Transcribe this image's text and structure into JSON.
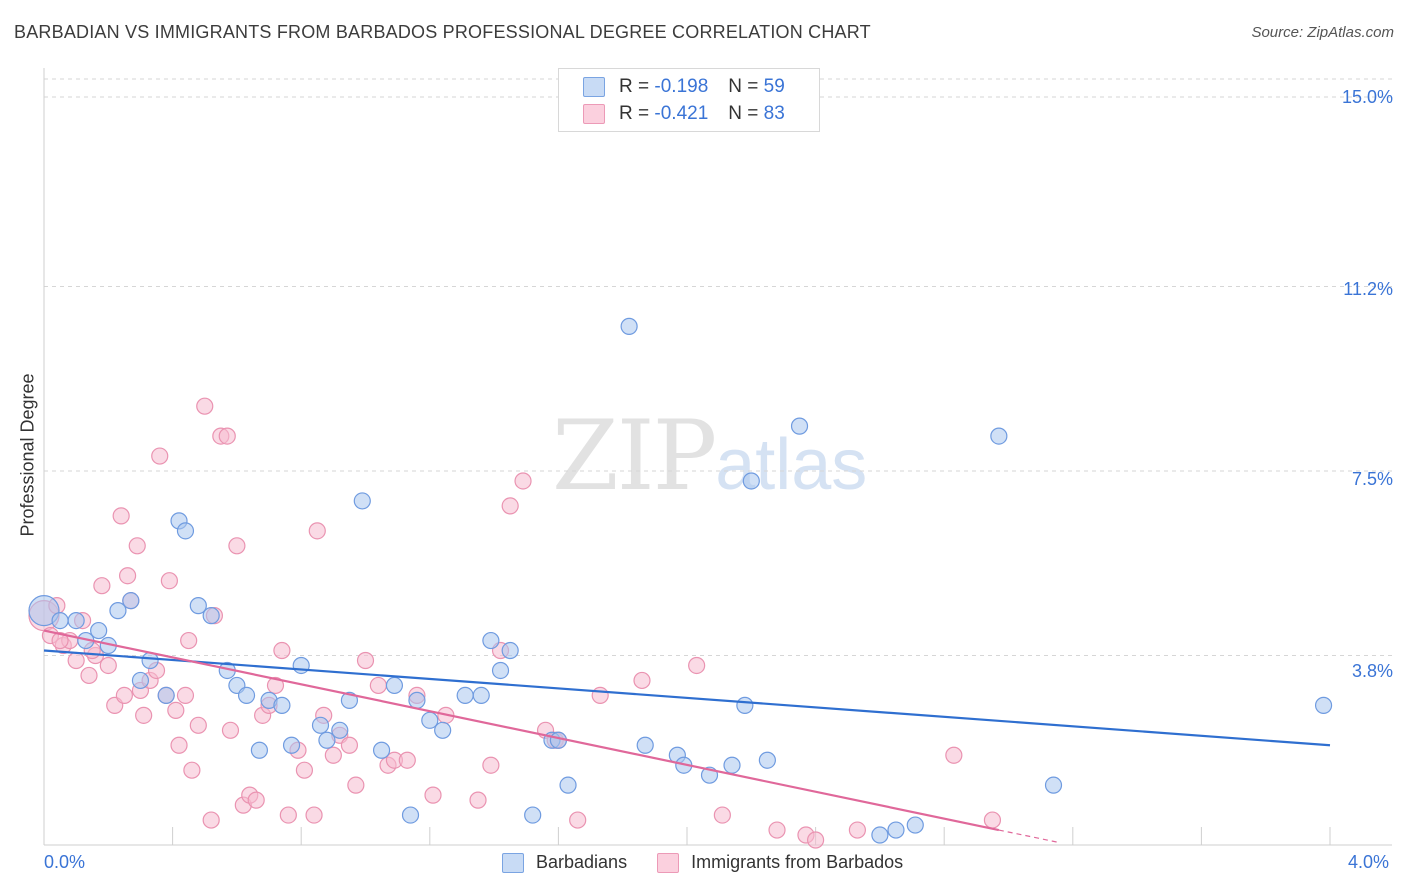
{
  "title": "BARBADIAN VS IMMIGRANTS FROM BARBADOS PROFESSIONAL DEGREE CORRELATION CHART",
  "source": "Source: ZipAtlas.com",
  "watermark": {
    "zip": "ZIP",
    "atlas": "atlas"
  },
  "legend_top": [
    {
      "r_label": "R =",
      "r_value": "-0.198",
      "n_label": "N =",
      "n_value": "59"
    },
    {
      "r_label": "R =",
      "r_value": "-0.421",
      "n_label": "N =",
      "n_value": "83"
    }
  ],
  "colors": {
    "blue_fill": "#a9c6ef",
    "blue_stroke": "#6f9be0",
    "blue_line": "#2f6fd0",
    "pink_fill": "#f6bcd0",
    "pink_stroke": "#ea93b1",
    "pink_line": "#e0689a",
    "grid": "#d6d6d6",
    "axis_text": "#3a74d6"
  },
  "chart_data": {
    "type": "scatter",
    "title": "BARBADIAN VS IMMIGRANTS FROM BARBADOS PROFESSIONAL DEGREE CORRELATION CHART",
    "xlabel": "",
    "ylabel": "Professional Degree",
    "xlim": [
      0.0,
      4.0
    ],
    "ylim": [
      0.0,
      15.0
    ],
    "x_tick_labels": [
      "0.0%",
      "4.0%"
    ],
    "y_ticks": [
      3.8,
      7.5,
      11.2,
      15.0
    ],
    "y_tick_labels": [
      "3.8%",
      "7.5%",
      "11.2%",
      "15.0%"
    ],
    "series": [
      {
        "name": "Barbadians",
        "color": "blue",
        "r": -0.198,
        "n": 59,
        "trend": {
          "x0": 0.0,
          "y0": 3.9,
          "x1": 4.0,
          "y1": 2.0
        },
        "points": [
          [
            0.0,
            4.7
          ],
          [
            0.05,
            4.5
          ],
          [
            0.1,
            4.5
          ],
          [
            0.13,
            4.1
          ],
          [
            0.17,
            4.3
          ],
          [
            0.2,
            4.0
          ],
          [
            0.23,
            4.7
          ],
          [
            0.27,
            4.9
          ],
          [
            0.3,
            3.3
          ],
          [
            0.33,
            3.7
          ],
          [
            0.38,
            3.0
          ],
          [
            0.42,
            6.5
          ],
          [
            0.44,
            6.3
          ],
          [
            0.48,
            4.8
          ],
          [
            0.52,
            4.6
          ],
          [
            0.57,
            3.5
          ],
          [
            0.6,
            3.2
          ],
          [
            0.63,
            3.0
          ],
          [
            0.67,
            1.9
          ],
          [
            0.7,
            2.9
          ],
          [
            0.74,
            2.8
          ],
          [
            0.77,
            2.0
          ],
          [
            0.8,
            3.6
          ],
          [
            0.86,
            2.4
          ],
          [
            0.88,
            2.1
          ],
          [
            0.92,
            2.3
          ],
          [
            0.95,
            2.9
          ],
          [
            0.99,
            6.9
          ],
          [
            1.05,
            1.9
          ],
          [
            1.09,
            3.2
          ],
          [
            1.14,
            0.6
          ],
          [
            1.16,
            2.9
          ],
          [
            1.2,
            2.5
          ],
          [
            1.24,
            2.3
          ],
          [
            1.31,
            3.0
          ],
          [
            1.36,
            3.0
          ],
          [
            1.39,
            4.1
          ],
          [
            1.42,
            3.5
          ],
          [
            1.45,
            3.9
          ],
          [
            1.52,
            0.6
          ],
          [
            1.58,
            2.1
          ],
          [
            1.6,
            2.1
          ],
          [
            1.63,
            1.2
          ],
          [
            1.82,
            10.4
          ],
          [
            1.87,
            2.0
          ],
          [
            1.97,
            1.8
          ],
          [
            1.99,
            1.6
          ],
          [
            2.07,
            1.4
          ],
          [
            2.14,
            1.6
          ],
          [
            2.18,
            2.8
          ],
          [
            2.2,
            7.3
          ],
          [
            2.25,
            1.7
          ],
          [
            2.35,
            8.4
          ],
          [
            2.6,
            0.2
          ],
          [
            2.65,
            0.3
          ],
          [
            2.71,
            0.4
          ],
          [
            2.97,
            8.2
          ],
          [
            3.14,
            1.2
          ],
          [
            3.98,
            2.8
          ]
        ]
      },
      {
        "name": "Immigrants from Barbados",
        "color": "pink",
        "r": -0.421,
        "n": 83,
        "trend": {
          "x0": 0.0,
          "y0": 4.3,
          "x1": 2.97,
          "y1": 0.3
        },
        "trend_dashed": {
          "x0": 2.97,
          "y0": 0.3,
          "x1": 3.15,
          "y1": 0.06
        },
        "points": [
          [
            0.0,
            4.6
          ],
          [
            0.02,
            4.2
          ],
          [
            0.04,
            4.8
          ],
          [
            0.06,
            4.0
          ],
          [
            0.08,
            4.1
          ],
          [
            0.1,
            3.7
          ],
          [
            0.12,
            4.5
          ],
          [
            0.14,
            3.4
          ],
          [
            0.16,
            3.8
          ],
          [
            0.18,
            5.2
          ],
          [
            0.2,
            3.6
          ],
          [
            0.22,
            2.8
          ],
          [
            0.24,
            6.6
          ],
          [
            0.26,
            5.4
          ],
          [
            0.27,
            4.9
          ],
          [
            0.29,
            6.0
          ],
          [
            0.3,
            3.1
          ],
          [
            0.31,
            2.6
          ],
          [
            0.33,
            3.3
          ],
          [
            0.35,
            3.5
          ],
          [
            0.36,
            7.8
          ],
          [
            0.38,
            3.0
          ],
          [
            0.39,
            5.3
          ],
          [
            0.41,
            2.7
          ],
          [
            0.42,
            2.0
          ],
          [
            0.44,
            3.0
          ],
          [
            0.46,
            1.5
          ],
          [
            0.48,
            2.4
          ],
          [
            0.5,
            8.8
          ],
          [
            0.52,
            0.5
          ],
          [
            0.53,
            4.6
          ],
          [
            0.55,
            8.2
          ],
          [
            0.57,
            8.2
          ],
          [
            0.58,
            2.3
          ],
          [
            0.6,
            6.0
          ],
          [
            0.62,
            0.8
          ],
          [
            0.64,
            1.0
          ],
          [
            0.66,
            0.9
          ],
          [
            0.68,
            2.6
          ],
          [
            0.7,
            2.8
          ],
          [
            0.72,
            3.2
          ],
          [
            0.74,
            3.9
          ],
          [
            0.76,
            0.6
          ],
          [
            0.79,
            1.9
          ],
          [
            0.81,
            1.5
          ],
          [
            0.84,
            0.6
          ],
          [
            0.85,
            6.3
          ],
          [
            0.87,
            2.6
          ],
          [
            0.9,
            1.8
          ],
          [
            0.92,
            2.2
          ],
          [
            0.95,
            2.0
          ],
          [
            0.97,
            1.2
          ],
          [
            1.0,
            3.7
          ],
          [
            1.04,
            3.2
          ],
          [
            1.07,
            1.6
          ],
          [
            1.09,
            1.7
          ],
          [
            1.13,
            1.7
          ],
          [
            1.16,
            3.0
          ],
          [
            1.21,
            1.0
          ],
          [
            1.25,
            2.6
          ],
          [
            1.35,
            0.9
          ],
          [
            1.39,
            1.6
          ],
          [
            1.42,
            3.9
          ],
          [
            1.45,
            6.8
          ],
          [
            1.49,
            7.3
          ],
          [
            1.56,
            2.3
          ],
          [
            1.59,
            2.1
          ],
          [
            1.6,
            2.1
          ],
          [
            1.66,
            0.5
          ],
          [
            1.73,
            3.0
          ],
          [
            1.86,
            3.3
          ],
          [
            2.03,
            3.6
          ],
          [
            2.11,
            0.6
          ],
          [
            2.28,
            0.3
          ],
          [
            2.37,
            0.2
          ],
          [
            2.4,
            0.1
          ],
          [
            2.53,
            0.3
          ],
          [
            2.83,
            1.8
          ],
          [
            2.95,
            0.5
          ],
          [
            0.05,
            4.1
          ],
          [
            0.15,
            3.9
          ],
          [
            0.25,
            3.0
          ],
          [
            0.45,
            4.1
          ]
        ]
      }
    ]
  },
  "axis": {
    "ylabel": "Professional Degree",
    "x_left": "0.0%",
    "x_right": "4.0%"
  },
  "bottom_legend": [
    "Barbadians",
    "Immigrants from Barbados"
  ]
}
